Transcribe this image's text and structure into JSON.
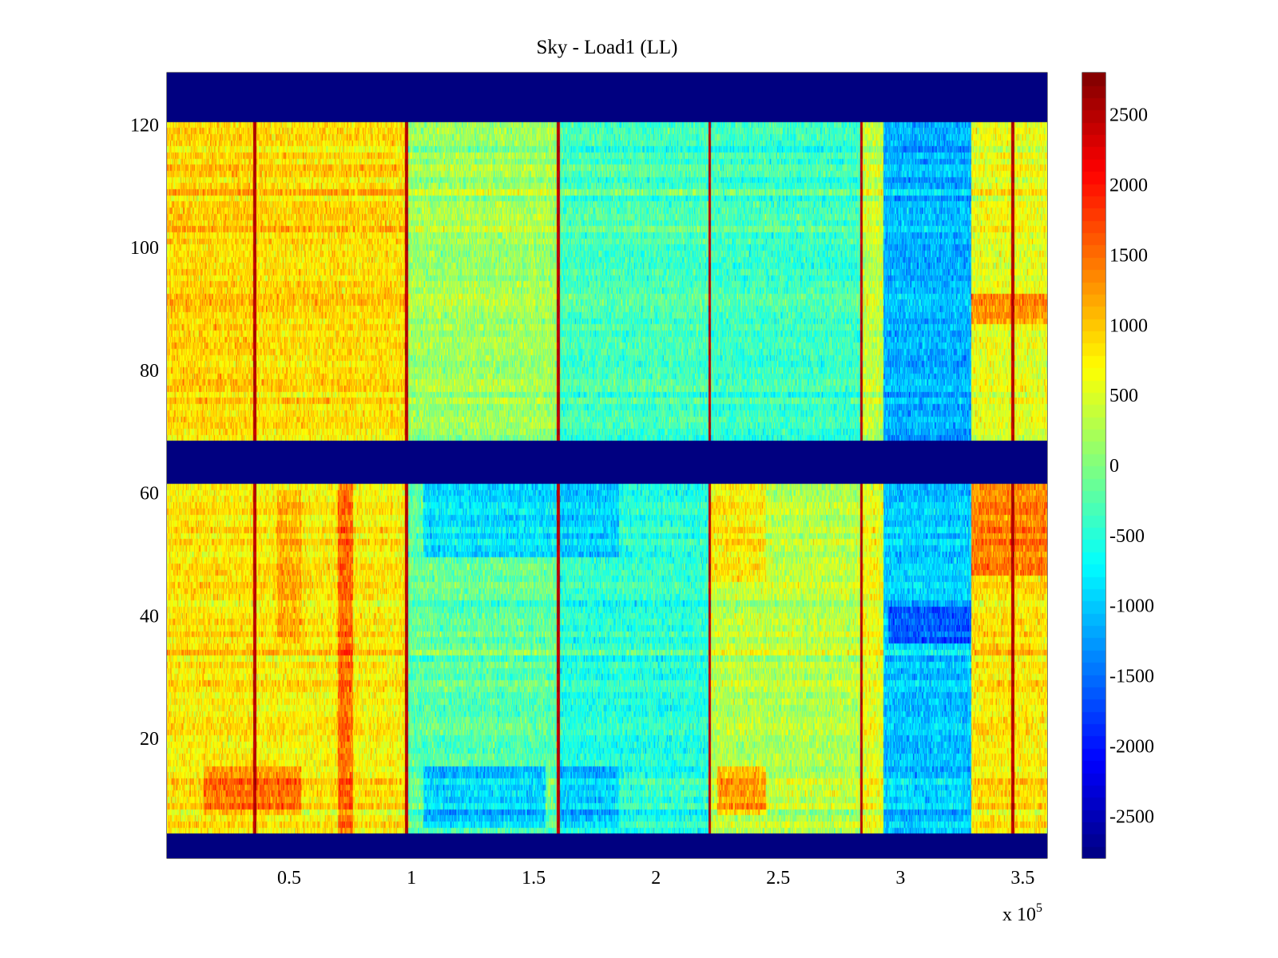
{
  "chart_data": {
    "type": "heatmap",
    "title": "Sky - Load1 (LL)",
    "xlabel": "",
    "ylabel": "",
    "x_exponent_label": "x 10",
    "x_exponent_sup": "5",
    "xlim": [
      0,
      3.6
    ],
    "ylim": [
      1,
      128
    ],
    "x_ticks": [
      0.5,
      1,
      1.5,
      2,
      2.5,
      3,
      3.5
    ],
    "x_tick_labels": [
      "0.5",
      "1",
      "1.5",
      "2",
      "2.5",
      "3",
      "3.5"
    ],
    "y_ticks": [
      20,
      40,
      60,
      80,
      100,
      120
    ],
    "y_tick_labels": [
      "20",
      "40",
      "60",
      "80",
      "100",
      "120"
    ],
    "colorbar": {
      "colormap": "jet",
      "clim": [
        -2800,
        2800
      ],
      "ticks": [
        2500,
        2000,
        1500,
        1000,
        500,
        0,
        -500,
        -1000,
        -1500,
        -2000,
        -2500
      ],
      "tick_labels": [
        "2500",
        "2000",
        "1500",
        "1000",
        "500",
        "0",
        "-500",
        "-1000",
        "-1500",
        "-2000",
        "-2500"
      ]
    },
    "masked_row_bands": [
      [
        1,
        4
      ],
      [
        62,
        68
      ],
      [
        121,
        128
      ]
    ],
    "masked_value": -2800,
    "spike_columns_x": [
      0.36,
      0.98,
      1.6,
      2.22,
      2.84,
      3.46
    ],
    "segments": [
      {
        "x_range": [
          0.0,
          0.36
        ],
        "upper_rows_mean": 950,
        "lower_rows_mean": 800
      },
      {
        "x_range": [
          0.36,
          0.98
        ],
        "upper_rows_mean": 900,
        "lower_rows_mean": 750
      },
      {
        "x_range": [
          0.98,
          1.6
        ],
        "upper_rows_mean": 200,
        "lower_rows_mean": -200
      },
      {
        "x_range": [
          1.6,
          2.22
        ],
        "upper_rows_mean": -300,
        "lower_rows_mean": -500
      },
      {
        "x_range": [
          2.22,
          2.84
        ],
        "upper_rows_mean": -350,
        "lower_rows_mean": 300
      },
      {
        "x_range": [
          2.84,
          2.93
        ],
        "upper_rows_mean": 400,
        "lower_rows_mean": 600
      },
      {
        "x_range": [
          2.93,
          3.29
        ],
        "upper_rows_mean": -1100,
        "lower_rows_mean": -1000
      },
      {
        "x_range": [
          3.29,
          3.6
        ],
        "upper_rows_mean": 600,
        "lower_rows_mean": 800
      }
    ],
    "hot_patches": [
      {
        "x_range": [
          0.15,
          0.55
        ],
        "rows": [
          8,
          15
        ],
        "value": 1700
      },
      {
        "x_range": [
          0.45,
          0.55
        ],
        "rows": [
          36,
          60
        ],
        "value": 1300
      },
      {
        "x_range": [
          0.7,
          0.76
        ],
        "rows": [
          5,
          61
        ],
        "value": 1900
      },
      {
        "x_range": [
          2.25,
          2.45
        ],
        "rows": [
          8,
          15
        ],
        "value": 1600
      },
      {
        "x_range": [
          2.22,
          2.45
        ],
        "rows": [
          46,
          61
        ],
        "value": 1000
      },
      {
        "x_range": [
          3.29,
          3.6
        ],
        "rows": [
          47,
          61
        ],
        "value": 1700
      },
      {
        "x_range": [
          3.29,
          3.6
        ],
        "rows": [
          88,
          92
        ],
        "value": 1600
      }
    ],
    "cold_patches": [
      {
        "x_range": [
          1.05,
          1.55
        ],
        "rows": [
          6,
          15
        ],
        "value": -1400
      },
      {
        "x_range": [
          1.05,
          1.85
        ],
        "rows": [
          50,
          61
        ],
        "value": -1200
      },
      {
        "x_range": [
          1.6,
          1.85
        ],
        "rows": [
          6,
          15
        ],
        "value": -1300
      },
      {
        "x_range": [
          2.95,
          3.29
        ],
        "rows": [
          36,
          41
        ],
        "value": -2000
      }
    ]
  }
}
